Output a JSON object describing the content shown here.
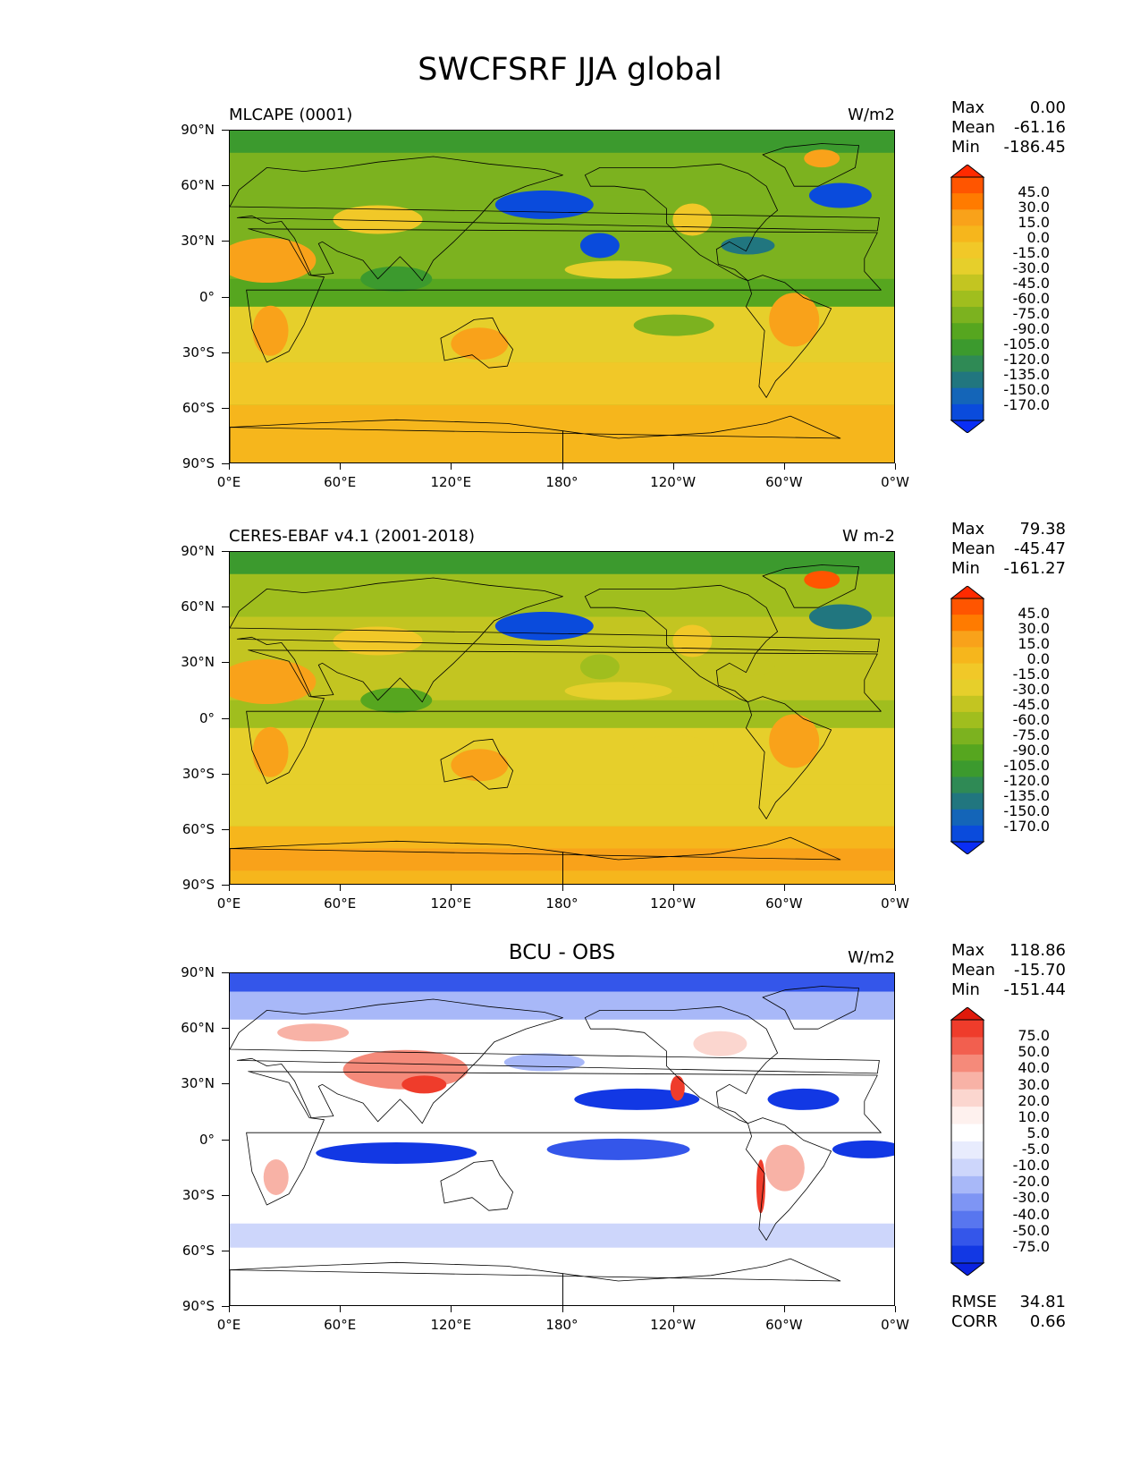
{
  "figure": {
    "title": "SWCFSRF JJA global"
  },
  "axes": {
    "lat_labels": [
      "90°N",
      "60°N",
      "30°N",
      "0°",
      "30°S",
      "60°S",
      "90°S"
    ],
    "lon_labels": [
      "0°E",
      "60°E",
      "120°E",
      "180°",
      "120°W",
      "60°W",
      "0°W"
    ]
  },
  "panels": [
    {
      "title": "MLCAPE (0001)",
      "units": "W/m2",
      "stats": {
        "max_label": "Max",
        "max": "0.00",
        "mean_label": "Mean",
        "mean": "-61.16",
        "min_label": "Min",
        "min": "-186.45"
      },
      "colorbar_labels": [
        "45.0",
        "30.0",
        "15.0",
        "0.0",
        "-15.0",
        "-30.0",
        "-45.0",
        "-60.0",
        "-75.0",
        "-90.0",
        "-105.0",
        "-120.0",
        "-135.0",
        "-150.0",
        "-170.0"
      ]
    },
    {
      "title": "CERES-EBAF v4.1 (2001-2018)",
      "units": "W m-2",
      "stats": {
        "max_label": "Max",
        "max": "79.38",
        "mean_label": "Mean",
        "mean": "-45.47",
        "min_label": "Min",
        "min": "-161.27"
      },
      "colorbar_labels": [
        "45.0",
        "30.0",
        "15.0",
        "0.0",
        "-15.0",
        "-30.0",
        "-45.0",
        "-60.0",
        "-75.0",
        "-90.0",
        "-105.0",
        "-120.0",
        "-135.0",
        "-150.0",
        "-170.0"
      ]
    },
    {
      "title": "BCU - OBS",
      "units": "W/m2",
      "stats": {
        "max_label": "Max",
        "max": "118.86",
        "mean_label": "Mean",
        "mean": "-15.70",
        "min_label": "Min",
        "min": "-151.44"
      },
      "colorbar_labels": [
        "75.0",
        "50.0",
        "40.0",
        "30.0",
        "20.0",
        "10.0",
        "5.0",
        "-5.0",
        "-10.0",
        "-20.0",
        "-30.0",
        "-40.0",
        "-50.0",
        "-75.0"
      ],
      "extra": {
        "rmse_label": "RMSE",
        "rmse": "34.81",
        "corr_label": "CORR",
        "corr": "0.66"
      }
    }
  ],
  "colors": {
    "cmap_main": [
      "#ff2a00",
      "#ff5500",
      "#ff7b00",
      "#f9a21a",
      "#f6b61c",
      "#f1c828",
      "#e6cf2b",
      "#c3c521",
      "#a0be1e",
      "#7cb21f",
      "#56a61f",
      "#3c9a2e",
      "#2f8a55",
      "#21767f",
      "#1465b8",
      "#0a4bdc",
      "#0a2ef5"
    ],
    "cmap_diff": [
      "#e0190a",
      "#ef3c2b",
      "#f25f4f",
      "#f58a7a",
      "#f8b2a6",
      "#fbd6cf",
      "#fef1ee",
      "#ffffff",
      "#e8ecfd",
      "#cdd6fb",
      "#a8b8f8",
      "#7e95f4",
      "#5876ef",
      "#3456ea",
      "#1238e4",
      "#0a22e0"
    ],
    "land_line": "#000000"
  }
}
